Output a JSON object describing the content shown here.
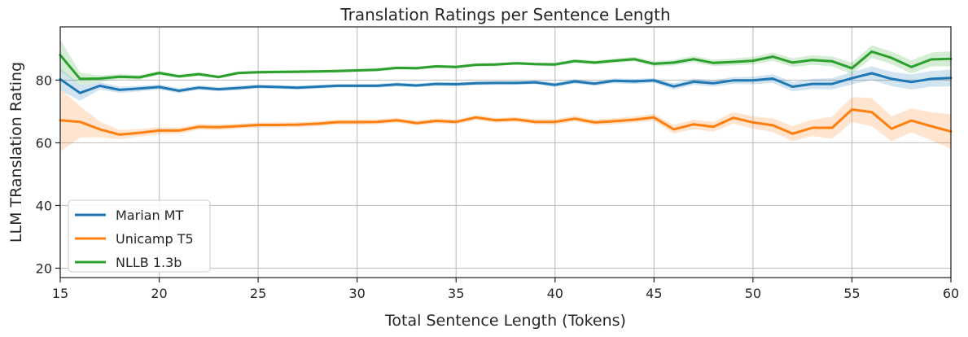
{
  "chart_data": {
    "type": "line",
    "title": "Translation Ratings per Sentence Length",
    "xlabel": "Total Sentence Length (Tokens)",
    "ylabel": "LLM TRanslation Rating",
    "xlim": [
      15,
      60
    ],
    "ylim": [
      17,
      97
    ],
    "xticks": [
      15,
      20,
      25,
      30,
      35,
      40,
      45,
      50,
      55,
      60
    ],
    "yticks": [
      20,
      40,
      60,
      80
    ],
    "grid": true,
    "legend_position": "bottom-left",
    "x": [
      15,
      16,
      17,
      18,
      19,
      20,
      21,
      22,
      23,
      24,
      25,
      26,
      27,
      28,
      29,
      30,
      31,
      32,
      33,
      34,
      35,
      36,
      37,
      38,
      39,
      40,
      41,
      42,
      43,
      44,
      45,
      46,
      47,
      48,
      49,
      50,
      51,
      52,
      53,
      54,
      55,
      56,
      57,
      58,
      59,
      60
    ],
    "series": [
      {
        "name": "Marian MT",
        "color": "#1f77b4",
        "values": [
          80.3,
          75.9,
          78.2,
          76.9,
          77.3,
          77.8,
          76.6,
          77.6,
          77.1,
          77.5,
          78.0,
          77.8,
          77.6,
          77.9,
          78.2,
          78.2,
          78.2,
          78.6,
          78.3,
          78.8,
          78.7,
          79.0,
          79.1,
          79.1,
          79.3,
          78.5,
          79.6,
          78.9,
          79.8,
          79.6,
          79.9,
          78.0,
          79.5,
          79.0,
          79.9,
          79.9,
          80.5,
          77.9,
          78.8,
          78.8,
          80.6,
          82.2,
          80.4,
          79.4,
          80.4,
          80.7
        ],
        "band": [
          3.5,
          2.5,
          1.2,
          1.0,
          0.9,
          0.8,
          0.8,
          0.7,
          0.7,
          0.7,
          0.6,
          0.6,
          0.6,
          0.6,
          0.6,
          0.6,
          0.6,
          0.6,
          0.6,
          0.6,
          0.6,
          0.6,
          0.6,
          0.6,
          0.6,
          0.7,
          0.7,
          0.7,
          0.8,
          0.8,
          0.8,
          1.0,
          1.0,
          1.0,
          1.1,
          1.2,
          1.4,
          1.5,
          1.6,
          1.8,
          2.0,
          2.2,
          2.3,
          2.4,
          2.5,
          2.7
        ]
      },
      {
        "name": "Unicamp T5",
        "color": "#ff7f0e",
        "values": [
          67.2,
          66.7,
          64.3,
          62.6,
          63.2,
          63.9,
          63.9,
          65.1,
          65.0,
          65.3,
          65.7,
          65.7,
          65.8,
          66.1,
          66.6,
          66.6,
          66.7,
          67.2,
          66.3,
          67.0,
          66.7,
          68.1,
          67.2,
          67.5,
          66.7,
          66.7,
          67.7,
          66.5,
          66.9,
          67.4,
          68.1,
          64.3,
          65.9,
          65.1,
          68.0,
          66.5,
          65.6,
          62.9,
          64.8,
          64.8,
          70.6,
          69.8,
          64.5,
          67.1,
          65.3,
          63.6
        ],
        "band": [
          10.0,
          5.0,
          2.5,
          1.5,
          1.2,
          1.1,
          1.0,
          0.9,
          0.9,
          0.8,
          0.8,
          0.8,
          0.8,
          0.8,
          0.8,
          0.8,
          0.8,
          0.8,
          0.8,
          0.8,
          0.8,
          0.8,
          0.8,
          0.8,
          0.8,
          0.9,
          0.9,
          0.9,
          1.0,
          1.0,
          1.1,
          1.4,
          1.5,
          1.6,
          1.8,
          2.0,
          2.2,
          2.4,
          2.6,
          3.5,
          4.0,
          4.5,
          4.0,
          3.8,
          4.5,
          5.5
        ]
      },
      {
        "name": "NLLB 1.3b",
        "color": "#2ca02c",
        "values": [
          88.0,
          80.4,
          80.5,
          81.1,
          80.9,
          82.3,
          81.2,
          81.9,
          81.0,
          82.3,
          82.5,
          82.6,
          82.7,
          82.8,
          82.9,
          83.1,
          83.3,
          83.9,
          83.8,
          84.4,
          84.2,
          84.9,
          85.0,
          85.4,
          85.1,
          85.0,
          86.1,
          85.6,
          86.2,
          86.7,
          85.2,
          85.6,
          86.7,
          85.5,
          85.8,
          86.2,
          87.5,
          85.6,
          86.4,
          86.0,
          83.8,
          89.1,
          87.1,
          84.2,
          86.6,
          86.8
        ],
        "band": [
          5.0,
          2.0,
          1.0,
          0.8,
          0.7,
          0.6,
          0.6,
          0.6,
          0.5,
          0.5,
          0.5,
          0.5,
          0.5,
          0.5,
          0.5,
          0.5,
          0.5,
          0.5,
          0.5,
          0.5,
          0.5,
          0.5,
          0.5,
          0.5,
          0.5,
          0.6,
          0.6,
          0.6,
          0.7,
          0.7,
          0.8,
          0.9,
          1.0,
          1.0,
          1.1,
          1.2,
          1.3,
          1.4,
          1.5,
          1.6,
          1.8,
          2.0,
          2.0,
          2.1,
          2.2,
          2.4
        ]
      }
    ]
  }
}
